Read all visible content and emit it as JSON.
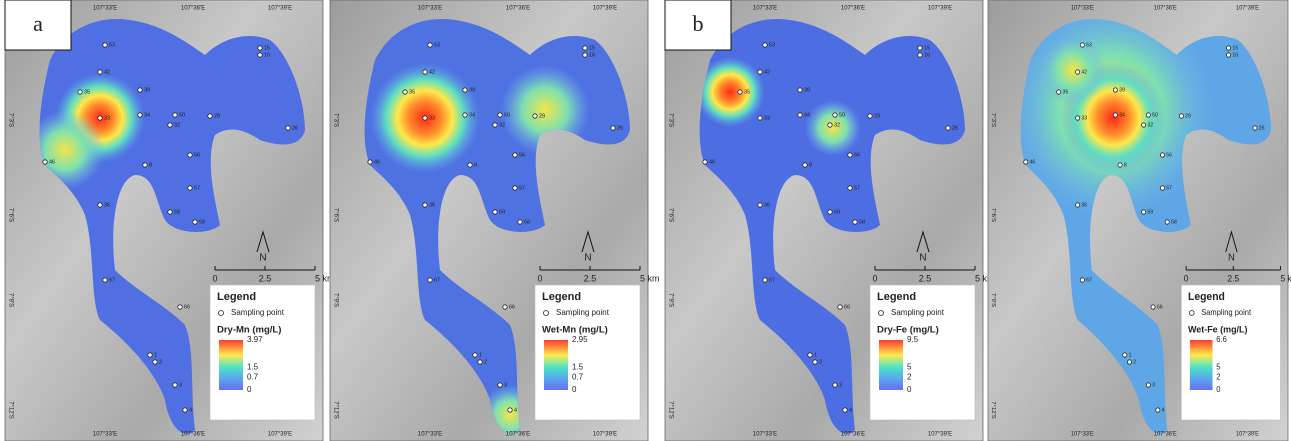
{
  "figure": {
    "coordinates": {
      "top": [
        "107°33'E",
        "107°36'E",
        "107°39'E"
      ],
      "left": [
        "7°3'S",
        "7°6'S",
        "7°9'S",
        "7°12'S"
      ]
    },
    "sampling_points": [
      "53",
      "42",
      "35",
      "39",
      "33",
      "34",
      "50",
      "32",
      "29",
      "26",
      "46",
      "8",
      "56",
      "57",
      "36",
      "59",
      "58",
      "67",
      "66",
      "1",
      "2",
      "3",
      "4",
      "15",
      "16"
    ],
    "legend": {
      "title": "Legend",
      "point_label": "Sampling point"
    },
    "scale_bar": {
      "ticks": [
        "0",
        "2.5",
        "5 km"
      ],
      "north": "N"
    },
    "panels": [
      {
        "label": "a",
        "variable": "Dry-Mn (mg/L)",
        "colorbar": [
          3.97,
          1.5,
          0.7,
          0
        ]
      },
      {
        "variable": "Wet-Mn (mg/L)",
        "colorbar": [
          2.95,
          1.5,
          0.7,
          0
        ]
      },
      {
        "label": "b",
        "variable": "Dry-Fe (mg/L)",
        "colorbar": [
          9.5,
          5,
          2,
          0
        ]
      },
      {
        "variable": "Wet-Fe (mg/L)",
        "colorbar": [
          6.6,
          5,
          2,
          0
        ]
      }
    ]
  }
}
